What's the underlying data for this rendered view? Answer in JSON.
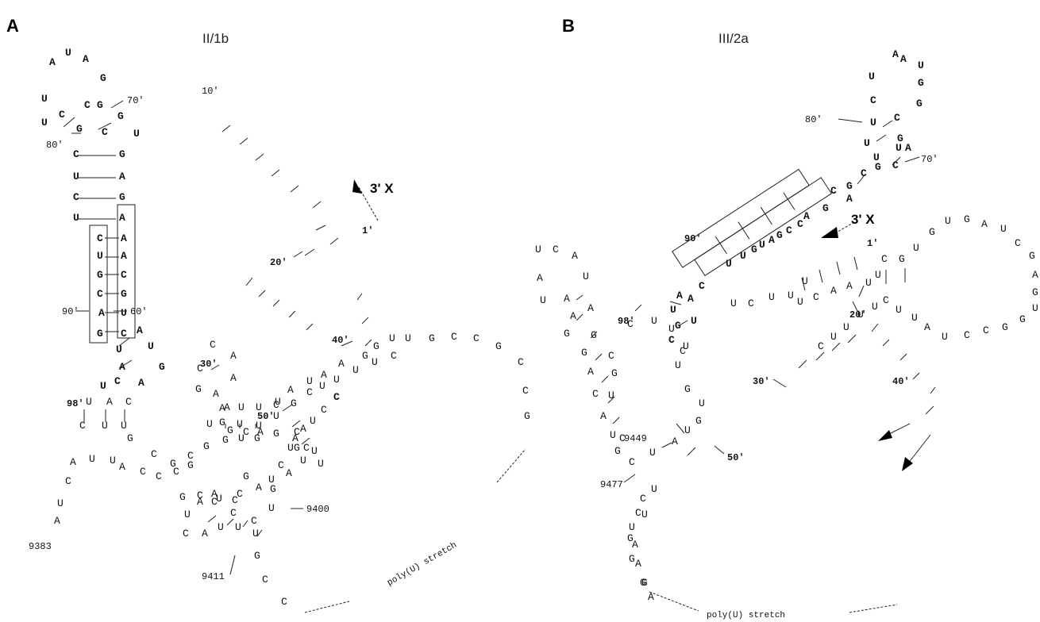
{
  "panels": [
    {
      "letter": "A",
      "title": "II/1b",
      "three_prime_label": "3' X",
      "stretch_label": "poly(U)  stretch"
    },
    {
      "letter": "B",
      "title": "III/2a",
      "three_prime_label": "3' X",
      "stretch_label": "poly(U)  stretch"
    }
  ],
  "nucleotides": [
    {
      "t": "A",
      "b": 1
    },
    {
      "t": "U",
      "b": 1
    },
    {
      "t": "A",
      "b": 1
    },
    {
      "t": "G",
      "b": 1
    },
    {
      "t": "C",
      "b": 1
    },
    {
      "t": "U",
      "b": 1
    },
    {
      "t": "U",
      "b": 1
    },
    {
      "t": "C",
      "b": 1
    },
    {
      "t": "G",
      "b": 1
    },
    {
      "t": "G",
      "b": 1
    },
    {
      "t": "C",
      "b": 1
    },
    {
      "t": "G",
      "b": 1
    },
    {
      "t": "U",
      "b": 1
    },
    {
      "t": "C",
      "b": 1
    },
    {
      "t": "G",
      "b": 1
    },
    {
      "t": "U",
      "b": 1
    },
    {
      "t": "A",
      "b": 1
    },
    {
      "t": "C",
      "b": 1
    },
    {
      "t": "G",
      "b": 1
    },
    {
      "t": "U",
      "b": 1
    },
    {
      "t": "A",
      "b": 1
    },
    {
      "t": "C",
      "b": 1
    },
    {
      "t": "A",
      "b": 1
    },
    {
      "t": "U",
      "b": 1
    },
    {
      "t": "A",
      "b": 1
    },
    {
      "t": "G",
      "b": 1
    },
    {
      "t": "C",
      "b": 1
    },
    {
      "t": "C",
      "b": 1
    },
    {
      "t": "G",
      "b": 1
    },
    {
      "t": "A",
      "b": 1
    },
    {
      "t": "U",
      "b": 1
    },
    {
      "t": "G",
      "b": 1
    },
    {
      "t": "C",
      "b": 1
    },
    {
      "t": "A",
      "b": 1
    },
    {
      "t": "U",
      "b": 1
    },
    {
      "t": "U",
      "b": 1
    },
    {
      "t": "A",
      "b": 1
    },
    {
      "t": "G",
      "b": 1
    },
    {
      "t": "C",
      "b": 1
    },
    {
      "t": "A",
      "b": 1
    },
    {
      "t": "U",
      "b": 1
    },
    {
      "t": "U",
      "b": 0
    },
    {
      "t": "A",
      "b": 0
    },
    {
      "t": "C",
      "b": 0
    },
    {
      "t": "C",
      "b": 0
    },
    {
      "t": "U",
      "b": 0
    },
    {
      "t": "U",
      "b": 0
    },
    {
      "t": "A",
      "b": 0
    },
    {
      "t": "C",
      "b": 0
    },
    {
      "t": "U",
      "b": 0
    },
    {
      "t": "A",
      "b": 0
    },
    {
      "t": "G",
      "b": 0
    },
    {
      "t": "C",
      "b": 0
    },
    {
      "t": "G",
      "b": 0
    },
    {
      "t": "C",
      "b": 0
    },
    {
      "t": "G",
      "b": 0
    },
    {
      "t": "G",
      "b": 0
    },
    {
      "t": "U",
      "b": 0
    },
    {
      "t": "G",
      "b": 0
    },
    {
      "t": "G",
      "b": 0
    },
    {
      "t": "U",
      "b": 0
    },
    {
      "t": "U",
      "b": 0
    },
    {
      "t": "A",
      "b": 0
    },
    {
      "t": "U",
      "b": 0
    },
    {
      "t": "U",
      "b": 0
    },
    {
      "t": "C",
      "b": 0
    },
    {
      "t": "U",
      "b": 0
    },
    {
      "t": "A",
      "b": 0
    },
    {
      "t": "U",
      "b": 0
    },
    {
      "t": "A",
      "b": 0
    },
    {
      "t": "A",
      "b": 0
    },
    {
      "t": "G",
      "b": 0
    },
    {
      "t": "G",
      "b": 0
    },
    {
      "t": "U",
      "b": 0
    },
    {
      "t": "U",
      "b": 0
    },
    {
      "t": "G",
      "b": 0
    },
    {
      "t": "C",
      "b": 0
    },
    {
      "t": "C",
      "b": 0
    },
    {
      "t": "G",
      "b": 0
    },
    {
      "t": "C",
      "b": 0
    },
    {
      "t": "C",
      "b": 0
    },
    {
      "t": "G",
      "b": 0
    },
    {
      "t": "U",
      "b": 0
    },
    {
      "t": "G",
      "b": 0
    },
    {
      "t": "C",
      "b": 0
    },
    {
      "t": "U",
      "b": 0
    },
    {
      "t": "U",
      "b": 0
    },
    {
      "t": "U",
      "b": 0
    },
    {
      "t": "U",
      "b": 0
    },
    {
      "t": "C",
      "b": 0
    },
    {
      "t": "C",
      "b": 0
    },
    {
      "t": "C",
      "b": 0
    },
    {
      "t": "U",
      "b": 0
    },
    {
      "t": "C",
      "b": 0
    },
    {
      "t": "A",
      "b": 0
    },
    {
      "t": "C",
      "b": 0
    },
    {
      "t": "A",
      "b": 0
    },
    {
      "t": "G",
      "b": 0
    },
    {
      "t": "A",
      "b": 0
    },
    {
      "t": "A",
      "b": 0
    },
    {
      "t": "U",
      "b": 0
    },
    {
      "t": "G",
      "b": 0
    },
    {
      "t": "C",
      "b": 0
    },
    {
      "t": "A",
      "b": 0
    },
    {
      "t": "G",
      "b": 0
    },
    {
      "t": "G",
      "b": 0
    },
    {
      "t": "G",
      "b": 0
    },
    {
      "t": "C",
      "b": 0
    },
    {
      "t": "C",
      "b": 0
    },
    {
      "t": "C",
      "b": 0
    },
    {
      "t": "A",
      "b": 0
    },
    {
      "t": "U",
      "b": 0
    },
    {
      "t": "U",
      "b": 0
    },
    {
      "t": "A",
      "b": 0
    },
    {
      "t": "C",
      "b": 0
    },
    {
      "t": "U",
      "b": 0
    },
    {
      "t": "C",
      "b": 0
    },
    {
      "t": "C",
      "b": 0
    },
    {
      "t": "A",
      "b": 0
    },
    {
      "t": "U",
      "b": 0
    },
    {
      "t": "U",
      "b": 0
    },
    {
      "t": "C",
      "b": 0
    },
    {
      "t": "U",
      "b": 0
    },
    {
      "t": "U",
      "b": 0
    },
    {
      "t": "G",
      "b": 0
    },
    {
      "t": "C",
      "b": 0
    },
    {
      "t": "C",
      "b": 0
    },
    {
      "t": "G",
      "b": 0
    },
    {
      "t": "U",
      "b": 0
    },
    {
      "t": "C",
      "b": 0
    },
    {
      "t": "G",
      "b": 0
    },
    {
      "t": "A",
      "b": 0
    },
    {
      "t": "U",
      "b": 0
    },
    {
      "t": "U",
      "b": 0
    },
    {
      "t": "G",
      "b": 0
    },
    {
      "t": "C",
      "b": 0
    },
    {
      "t": "A",
      "b": 0
    },
    {
      "t": "C",
      "b": 0
    },
    {
      "t": "A",
      "b": 0
    },
    {
      "t": "U",
      "b": 0
    },
    {
      "t": "C",
      "b": 0
    },
    {
      "t": "U",
      "b": 0
    },
    {
      "t": "A",
      "b": 0
    },
    {
      "t": "A",
      "b": 0
    },
    {
      "t": "U",
      "b": 0
    },
    {
      "t": "C",
      "b": 0
    },
    {
      "t": "C",
      "b": 1
    },
    {
      "t": "A",
      "b": 1
    },
    {
      "t": "A",
      "b": 1
    },
    {
      "t": "U",
      "b": 1
    },
    {
      "t": "U",
      "b": 1
    },
    {
      "t": "G",
      "b": 1
    },
    {
      "t": "C",
      "b": 1
    },
    {
      "t": "G",
      "b": 1
    },
    {
      "t": "U",
      "b": 1
    },
    {
      "t": "C",
      "b": 1
    },
    {
      "t": "U",
      "b": 1
    },
    {
      "t": "G",
      "b": 1
    },
    {
      "t": "U",
      "b": 1
    },
    {
      "t": "C",
      "b": 1
    },
    {
      "t": "A",
      "b": 1
    },
    {
      "t": "G",
      "b": 1
    },
    {
      "t": "U",
      "b": 1
    },
    {
      "t": "C",
      "b": 1
    },
    {
      "t": "G",
      "b": 1
    },
    {
      "t": "A",
      "b": 1
    },
    {
      "t": "C",
      "b": 1
    },
    {
      "t": "G",
      "b": 1
    },
    {
      "t": "A",
      "b": 1
    },
    {
      "t": "C",
      "b": 1
    },
    {
      "t": "A",
      "b": 1
    },
    {
      "t": "G",
      "b": 1
    },
    {
      "t": "U",
      "b": 1
    },
    {
      "t": "C",
      "b": 1
    },
    {
      "t": "G",
      "b": 1
    },
    {
      "t": "U",
      "b": 1
    },
    {
      "t": "U",
      "b": 1
    },
    {
      "t": "C",
      "b": 1
    },
    {
      "t": "A",
      "b": 1
    },
    {
      "t": "A",
      "b": 1
    },
    {
      "t": "U",
      "b": 1
    },
    {
      "t": "U",
      "b": 1
    },
    {
      "t": "G",
      "b": 1
    },
    {
      "t": "C",
      "b": 1
    },
    {
      "t": "C",
      "b": 0
    },
    {
      "t": "U",
      "b": 0
    },
    {
      "t": "C",
      "b": 0
    },
    {
      "t": "A",
      "b": 0
    },
    {
      "t": "A",
      "b": 0
    },
    {
      "t": "U",
      "b": 0
    },
    {
      "t": "U",
      "b": 0
    },
    {
      "t": "A",
      "b": 0
    },
    {
      "t": "A",
      "b": 0
    },
    {
      "t": "A",
      "b": 0
    },
    {
      "t": "G",
      "b": 0
    },
    {
      "t": "G",
      "b": 0
    },
    {
      "t": "G",
      "b": 0
    },
    {
      "t": "C",
      "b": 0
    },
    {
      "t": "A",
      "b": 0
    },
    {
      "t": "G",
      "b": 0
    },
    {
      "t": "C",
      "b": 0
    },
    {
      "t": "U",
      "b": 0
    },
    {
      "t": "A",
      "b": 0
    },
    {
      "t": "U",
      "b": 0
    },
    {
      "t": "G",
      "b": 0
    },
    {
      "t": "C",
      "b": 0
    },
    {
      "t": "U",
      "b": 0
    },
    {
      "t": "A",
      "b": 0
    },
    {
      "t": "U",
      "b": 0
    },
    {
      "t": "G",
      "b": 0
    },
    {
      "t": "U",
      "b": 0
    },
    {
      "t": "G",
      "b": 0
    },
    {
      "t": "U",
      "b": 0
    },
    {
      "t": "U",
      "b": 0
    },
    {
      "t": "U",
      "b": 0
    },
    {
      "t": "U",
      "b": 0
    },
    {
      "t": "C",
      "b": 0
    },
    {
      "t": "C",
      "b": 0
    },
    {
      "t": "U",
      "b": 0
    },
    {
      "t": "G",
      "b": 0
    },
    {
      "t": "G",
      "b": 0
    },
    {
      "t": "G",
      "b": 0
    },
    {
      "t": "U",
      "b": 0
    },
    {
      "t": "C",
      "b": 0
    },
    {
      "t": "C",
      "b": 0
    },
    {
      "t": "U",
      "b": 0
    },
    {
      "t": "A",
      "b": 0
    },
    {
      "t": "A",
      "b": 0
    },
    {
      "t": "G",
      "b": 0
    },
    {
      "t": "A",
      "b": 0
    },
    {
      "t": "U",
      "b": 0
    },
    {
      "t": "C",
      "b": 0
    },
    {
      "t": "U",
      "b": 0
    },
    {
      "t": "U",
      "b": 0
    },
    {
      "t": "U",
      "b": 0
    },
    {
      "t": "U",
      "b": 0
    },
    {
      "t": "C",
      "b": 0
    },
    {
      "t": "A",
      "b": 0
    },
    {
      "t": "A",
      "b": 0
    },
    {
      "t": "U",
      "b": 0
    },
    {
      "t": "U",
      "b": 0
    },
    {
      "t": "C",
      "b": 0
    },
    {
      "t": "G",
      "b": 0
    },
    {
      "t": "U",
      "b": 0
    },
    {
      "t": "G",
      "b": 0
    },
    {
      "t": "U",
      "b": 0
    },
    {
      "t": "G",
      "b": 0
    },
    {
      "t": "A",
      "b": 0
    },
    {
      "t": "U",
      "b": 0
    },
    {
      "t": "C",
      "b": 0
    },
    {
      "t": "G",
      "b": 0
    },
    {
      "t": "A",
      "b": 0
    },
    {
      "t": "G",
      "b": 0
    },
    {
      "t": "U",
      "b": 0
    },
    {
      "t": "G",
      "b": 0
    },
    {
      "t": "G",
      "b": 0
    },
    {
      "t": "C",
      "b": 0
    },
    {
      "t": "C",
      "b": 0
    },
    {
      "t": "U",
      "b": 0
    },
    {
      "t": "A",
      "b": 0
    },
    {
      "t": "U",
      "b": 0
    },
    {
      "t": "U",
      "b": 0
    },
    {
      "t": "C",
      "b": 0
    },
    {
      "t": "U",
      "b": 0
    },
    {
      "t": "U",
      "b": 0
    },
    {
      "t": "U",
      "b": 0
    },
    {
      "t": "U",
      "b": 0
    },
    {
      "t": "C",
      "b": 0
    }
  ],
  "numbers": [
    {
      "t": "70'",
      "b": 0
    },
    {
      "t": "80'",
      "b": 0
    },
    {
      "t": "10'",
      "b": 0
    },
    {
      "t": "1'",
      "b": 1
    },
    {
      "t": "20'",
      "b": 1
    },
    {
      "t": "60'",
      "b": 0
    },
    {
      "t": "90'",
      "b": 0
    },
    {
      "t": "30'",
      "b": 1
    },
    {
      "t": "40'",
      "b": 1
    },
    {
      "t": "98'",
      "b": 1
    },
    {
      "t": "50'",
      "b": 1
    },
    {
      "t": "9400",
      "b": 0
    },
    {
      "t": "9383",
      "b": 0
    },
    {
      "t": "9411",
      "b": 0
    },
    {
      "t": "80'",
      "b": 0
    },
    {
      "t": "70'",
      "b": 0
    },
    {
      "t": "90'",
      "b": 1
    },
    {
      "t": "1'",
      "b": 1
    },
    {
      "t": "98'",
      "b": 1
    },
    {
      "t": "20'",
      "b": 1
    },
    {
      "t": "30'",
      "b": 1
    },
    {
      "t": "40'",
      "b": 1
    },
    {
      "t": "9449",
      "b": 0
    },
    {
      "t": "50'",
      "b": 1
    },
    {
      "t": "9477",
      "b": 0
    }
  ]
}
